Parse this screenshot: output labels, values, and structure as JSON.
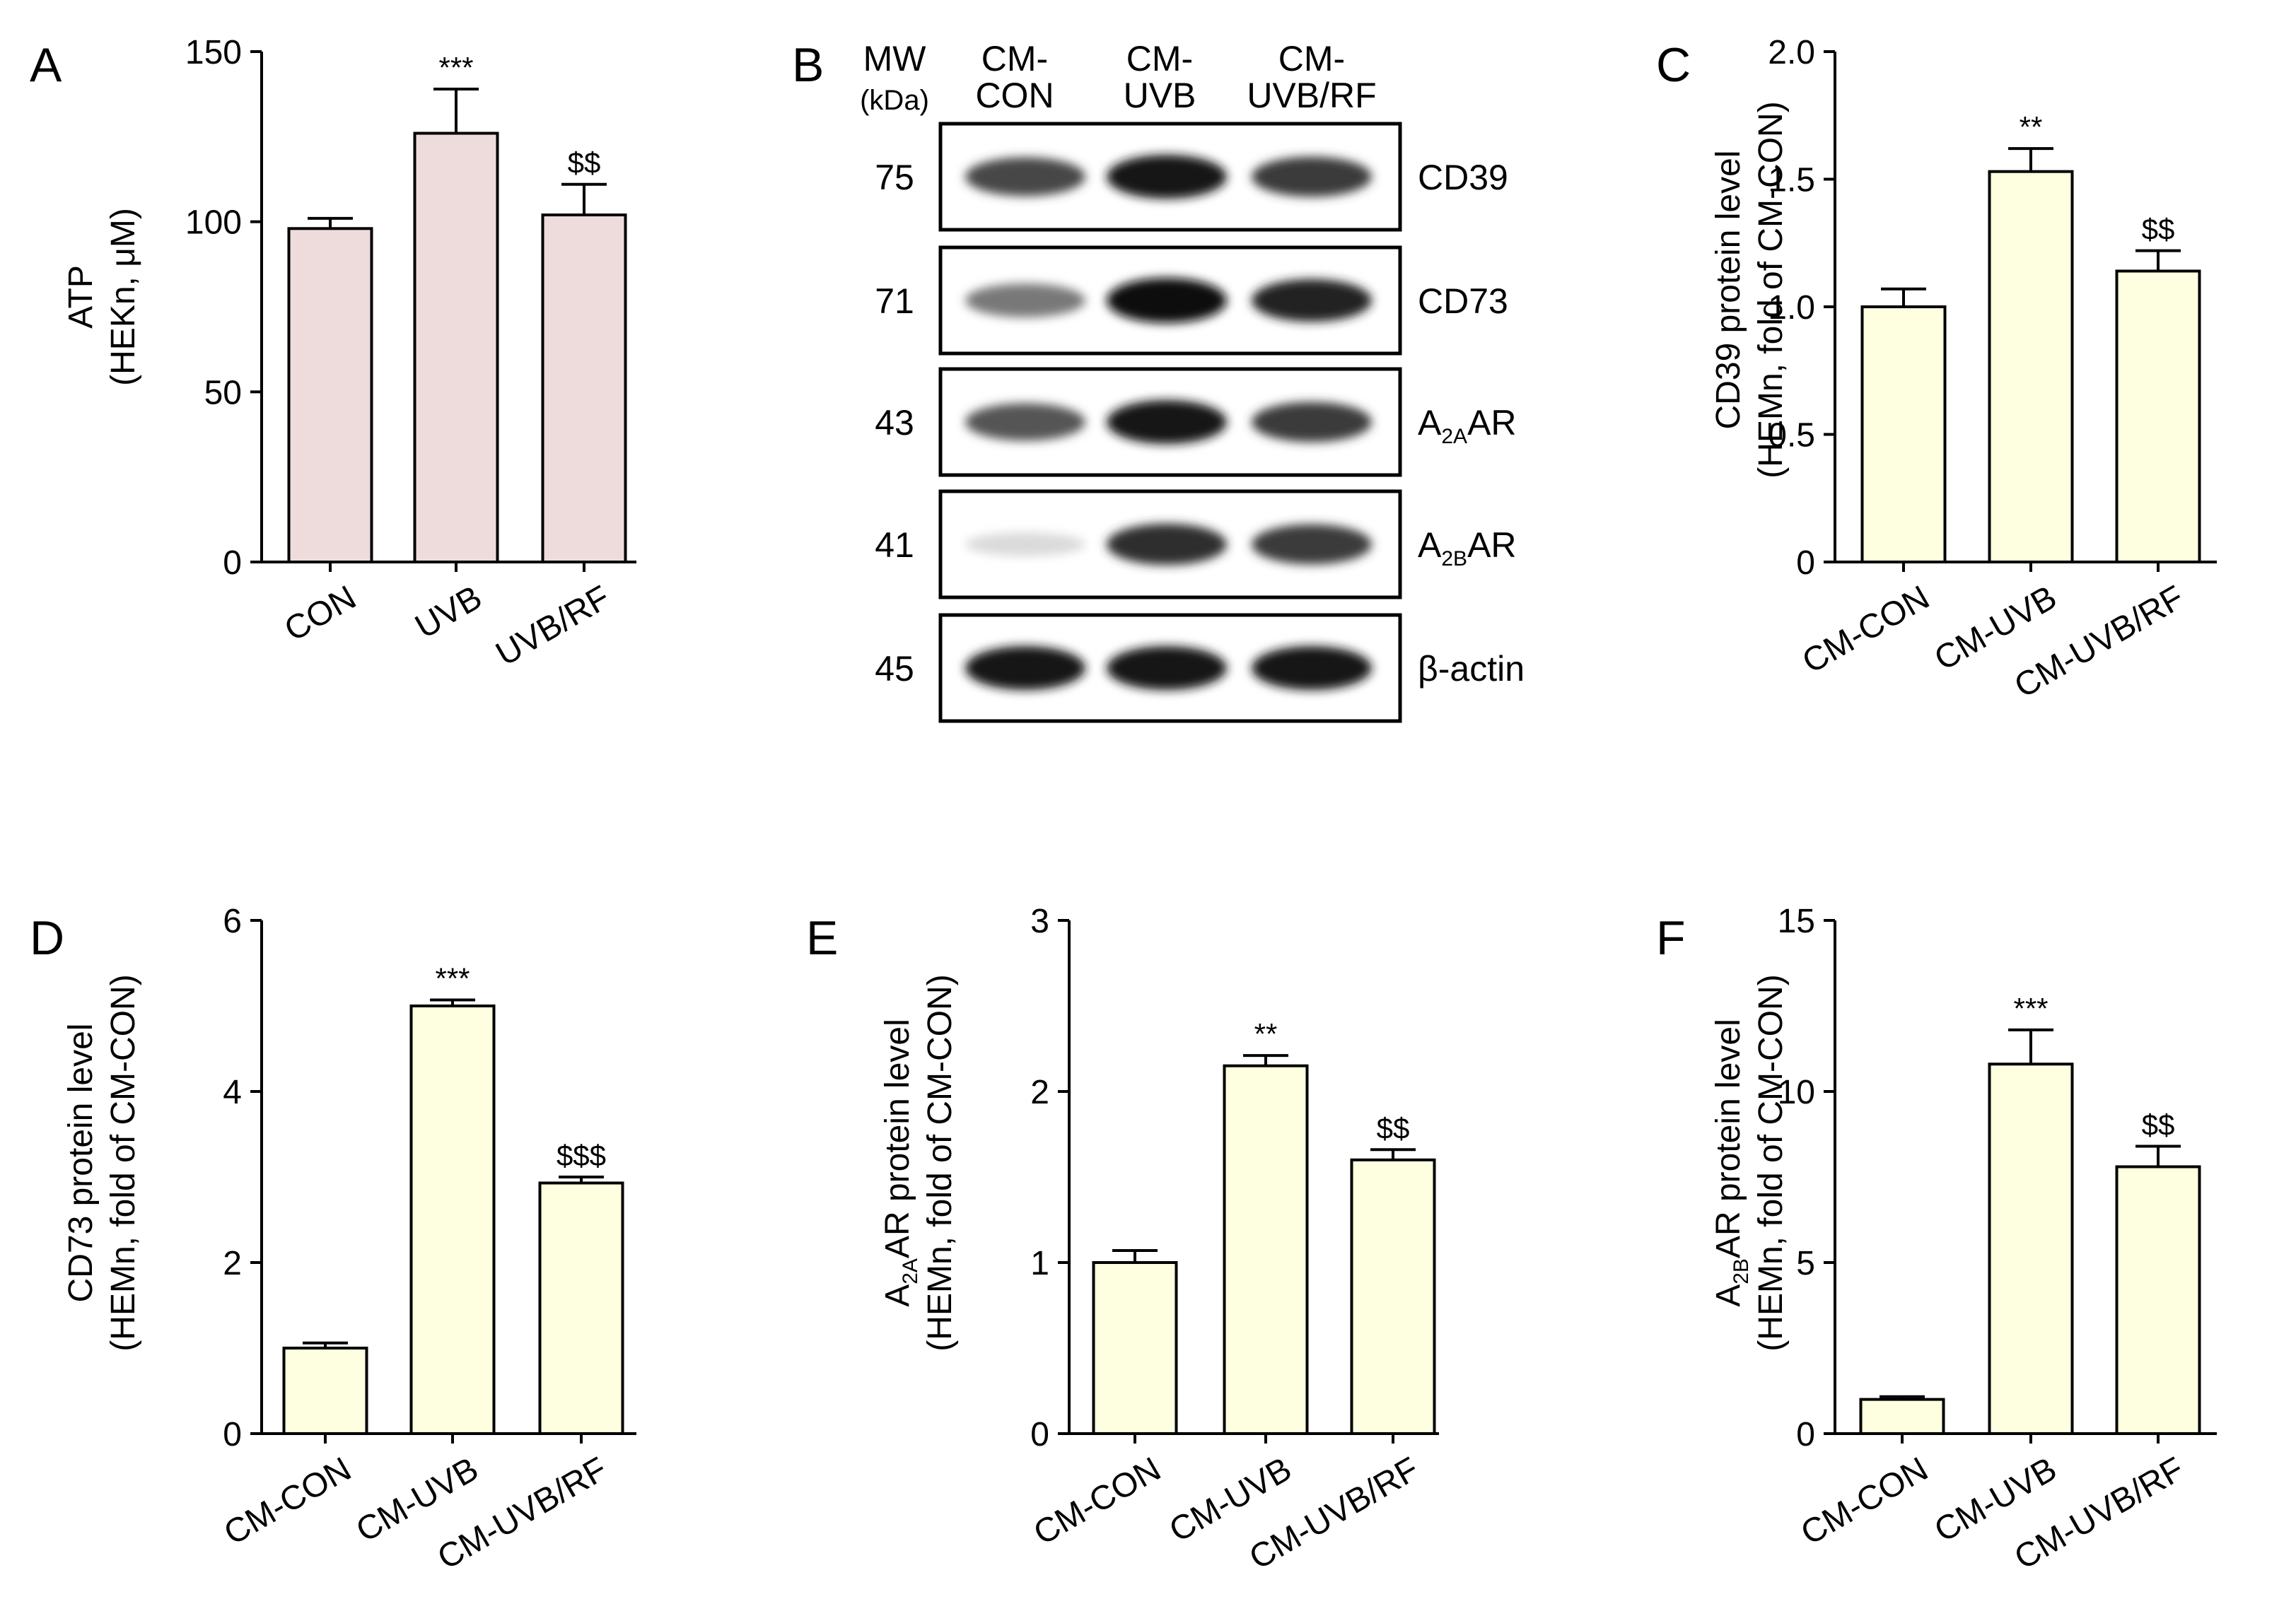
{
  "figure": {
    "chart_data": [
      {
        "panel": "A",
        "type": "bar",
        "categories": [
          "CON",
          "UVB",
          "UVB/RF"
        ],
        "values": [
          98,
          126,
          102
        ],
        "errors": [
          3,
          13,
          9
        ],
        "significance": [
          "",
          "***",
          "$$"
        ],
        "ylim": [
          0,
          150
        ],
        "yticks": [
          "0",
          "50",
          "100",
          "150"
        ],
        "ylabel_line1": "ATP",
        "ylabel_line2": "(HEKn, μM)",
        "bar_color": "#eedcdc"
      },
      {
        "panel": "C",
        "type": "bar",
        "categories": [
          "CM-CON",
          "CM-UVB",
          "CM-UVB/RF"
        ],
        "values": [
          1.0,
          1.53,
          1.14
        ],
        "errors": [
          0.07,
          0.09,
          0.08
        ],
        "significance": [
          "",
          "**",
          "$$"
        ],
        "ylim": [
          0,
          2.0
        ],
        "yticks": [
          "0",
          "0.5",
          "1.0",
          "1.5",
          "2.0"
        ],
        "ylabel_line1": "CD39 protein level",
        "ylabel_line2": "(HEMn, fold of CM-CON)",
        "bar_color": "#fefee0"
      },
      {
        "panel": "D",
        "type": "bar",
        "categories": [
          "CM-CON",
          "CM-UVB",
          "CM-UVB/RF"
        ],
        "values": [
          1.0,
          5.0,
          2.93
        ],
        "errors": [
          0.06,
          0.07,
          0.07
        ],
        "significance": [
          "",
          "***",
          "$$$"
        ],
        "ylim": [
          0,
          6
        ],
        "yticks": [
          "0",
          "2",
          "4",
          "6"
        ],
        "ylabel_line1": "CD73 protein level",
        "ylabel_line2": "(HEMn, fold of CM-CON)",
        "bar_color": "#fefee0"
      },
      {
        "panel": "E",
        "type": "bar",
        "categories": [
          "CM-CON",
          "CM-UVB",
          "CM-UVB/RF"
        ],
        "values": [
          1.0,
          2.15,
          1.6
        ],
        "errors": [
          0.07,
          0.06,
          0.06
        ],
        "significance": [
          "",
          "**",
          "$$"
        ],
        "ylim": [
          0,
          3
        ],
        "yticks": [
          "0",
          "1",
          "2",
          "3"
        ],
        "ylabel_sub_prefix": "A",
        "ylabel_sub": "2A",
        "ylabel_rest": "AR protein level",
        "ylabel_line2": "(HEMn, fold of CM-CON)",
        "bar_color": "#fefee0"
      },
      {
        "panel": "F",
        "type": "bar",
        "categories": [
          "CM-CON",
          "CM-UVB",
          "CM-UVB/RF"
        ],
        "values": [
          1.0,
          10.8,
          7.8
        ],
        "errors": [
          0.08,
          1.0,
          0.6
        ],
        "significance": [
          "",
          "***",
          "$$"
        ],
        "ylim": [
          0,
          15
        ],
        "yticks": [
          "0",
          "5",
          "10",
          "15"
        ],
        "ylabel_sub_prefix": "A",
        "ylabel_sub": "2B",
        "ylabel_rest": "AR protein level",
        "ylabel_line2": "(HEMn, fold of CM-CON)",
        "bar_color": "#fefee0"
      }
    ],
    "western_blot": {
      "panel": "B",
      "mw_label": "MW",
      "mw_unit": "(kDa)",
      "lanes": [
        {
          "line1": "CM-",
          "line2": "CON"
        },
        {
          "line1": "CM-",
          "line2": "UVB"
        },
        {
          "line1": "CM-",
          "line2": "UVB/RF"
        }
      ],
      "rows": [
        {
          "mw": "75",
          "label": "CD39",
          "intensities": [
            0.75,
            0.95,
            0.8
          ]
        },
        {
          "mw": "71",
          "label": "CD73",
          "intensities": [
            0.55,
            1.0,
            0.9
          ]
        },
        {
          "mw": "43",
          "label_main": "A",
          "label_sub": "2A",
          "label_rest": "AR",
          "intensities": [
            0.7,
            0.95,
            0.8
          ]
        },
        {
          "mw": "41",
          "label_main": "A",
          "label_sub": "2B",
          "label_rest": "AR",
          "intensities": [
            0.15,
            0.85,
            0.8
          ]
        },
        {
          "mw": "45",
          "label": "β-actin",
          "intensities": [
            0.95,
            0.95,
            0.95
          ]
        }
      ]
    }
  }
}
